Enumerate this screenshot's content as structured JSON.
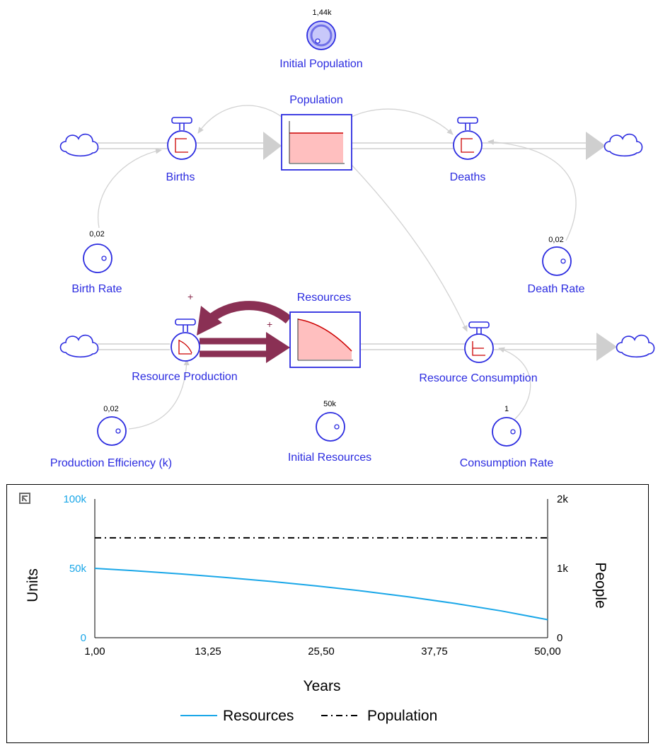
{
  "colors": {
    "label": "#2b2be0",
    "node_stroke": "#2b2be0",
    "stock_fill": "#ffbfbf",
    "stock_line": "#cc0000",
    "feedback_arrow": "#8a3054",
    "resources_series": "#1aa7e8",
    "population_series": "#000000"
  },
  "diagram": {
    "initial_population": {
      "label": "Initial Population",
      "value": "1,44k"
    },
    "population": {
      "label": "Population"
    },
    "births": {
      "label": "Births"
    },
    "deaths": {
      "label": "Deaths"
    },
    "birth_rate": {
      "label": "Birth Rate",
      "value": "0,02"
    },
    "death_rate": {
      "label": "Death Rate",
      "value": "0,02"
    },
    "resources": {
      "label": "Resources"
    },
    "resource_production": {
      "label": "Resource Production"
    },
    "resource_consumption": {
      "label": "Resource Consumption"
    },
    "production_efficiency": {
      "label": "Production Efficiency (k)",
      "value": "0,02"
    },
    "initial_resources": {
      "label": "Initial Resources",
      "value": "50k"
    },
    "consumption_rate": {
      "label": "Consumption Rate",
      "value": "1"
    },
    "polarity_outer": "+",
    "polarity_inner": "+",
    "icons": [
      "cloud-icon",
      "valve-icon",
      "variable-circle-icon",
      "expand-icon"
    ]
  },
  "chart_data": {
    "type": "line",
    "xlabel": "Years",
    "ylabel_left": "Units",
    "ylabel_right": "People",
    "xlim": [
      1,
      50
    ],
    "ylim_left": [
      0,
      100000
    ],
    "ylim_right": [
      0,
      2000
    ],
    "x_ticks": [
      "1,00",
      "13,25",
      "25,50",
      "37,75",
      "50,00"
    ],
    "y_left_ticks": [
      "0",
      "50k",
      "100k"
    ],
    "y_right_ticks": [
      "0",
      "1k",
      "2k"
    ],
    "legend_position": "bottom",
    "series": [
      {
        "name": "Resources",
        "axis": "left",
        "style": "solid",
        "x": [
          1,
          5,
          10,
          15,
          20,
          25,
          30,
          35,
          40,
          45,
          50
        ],
        "values": [
          50000,
          48400,
          46100,
          43500,
          40600,
          37300,
          33600,
          29400,
          24700,
          19300,
          13000
        ]
      },
      {
        "name": "Population",
        "axis": "right",
        "style": "dash-dot",
        "x": [
          1,
          50
        ],
        "values": [
          1440,
          1440
        ]
      }
    ]
  }
}
